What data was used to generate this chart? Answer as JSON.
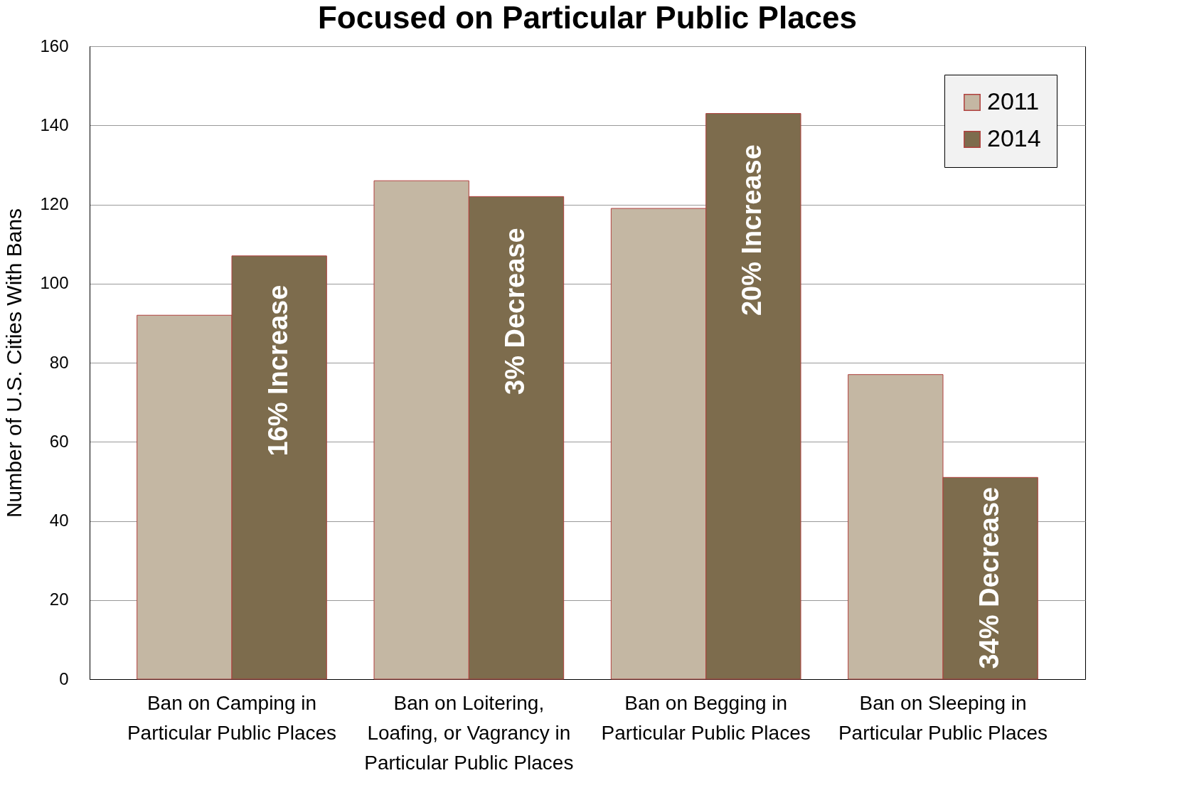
{
  "chart_data": {
    "type": "bar",
    "title": "Focused on Particular Public Places",
    "ylabel": "Number of U.S. Cities With Bans",
    "categories": [
      "Ban on Camping in Particular Public Places",
      "Ban on Loitering, Loafing, or Vagrancy in Particular Public Places",
      "Ban on Begging in Particular Public Places",
      "Ban on Sleeping in Particular Public Places"
    ],
    "series": [
      {
        "name": "2011",
        "color": "#c4b7a3",
        "values": [
          92,
          126,
          119,
          77
        ]
      },
      {
        "name": "2014",
        "color": "#7d6c4d",
        "values": [
          107,
          122,
          143,
          51
        ]
      }
    ],
    "annotations": [
      {
        "text": "16% Increase",
        "x": "Ban on Camping in Particular Public Places",
        "y": 78
      },
      {
        "text": "3% Decrease",
        "x": "Ban on Loitering, Loafing, or Vagrancy in Particular Public Places",
        "y": 93
      },
      {
        "text": "20% Increase",
        "x": "Ban on Begging in Particular Public Places",
        "y": 113.5
      },
      {
        "text": "34% Decrease",
        "x": "Ban on Sleeping in Particular Public Places",
        "y": 25.6
      }
    ],
    "ylim": [
      0,
      160
    ],
    "yticks": [
      0,
      20,
      40,
      60,
      80,
      100,
      120,
      140,
      160
    ],
    "grid": "y",
    "legend": "top right"
  }
}
